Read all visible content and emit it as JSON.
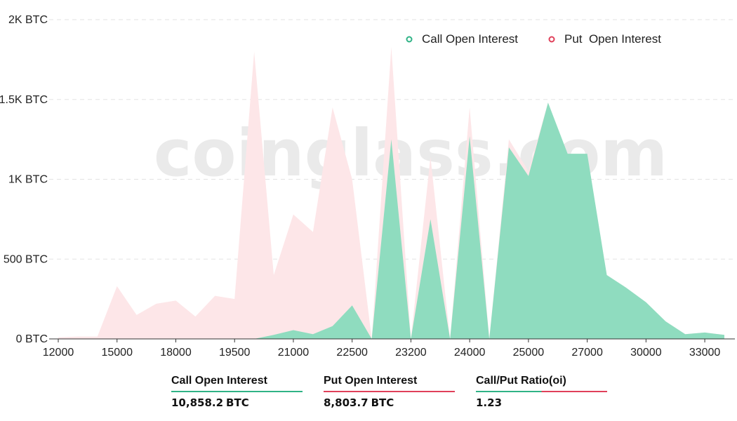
{
  "watermark": "coinglass.com",
  "colors": {
    "call": "#8fdcbf",
    "call_dot": "#2fb386",
    "put": "#fde6e8",
    "put_dot": "#e0405a",
    "grid": "#e3e3e3"
  },
  "chart_data": {
    "type": "area",
    "title": "",
    "xlabel": "",
    "ylabel": "",
    "y_unit": "BTC",
    "ylim": [
      0,
      2000
    ],
    "y_ticks": [
      {
        "value": 0,
        "label": "0 BTC"
      },
      {
        "value": 500,
        "label": "500 BTC"
      },
      {
        "value": 1000,
        "label": "1K BTC"
      },
      {
        "value": 1500,
        "label": "1.5K BTC"
      },
      {
        "value": 2000,
        "label": "2K BTC"
      }
    ],
    "x_tick_labels": [
      {
        "index": 0,
        "label": "12000"
      },
      {
        "index": 3,
        "label": "15000"
      },
      {
        "index": 6,
        "label": "18000"
      },
      {
        "index": 9,
        "label": "19500"
      },
      {
        "index": 12,
        "label": "21000"
      },
      {
        "index": 15,
        "label": "22500"
      },
      {
        "index": 18,
        "label": "23200"
      },
      {
        "index": 21,
        "label": "24000"
      },
      {
        "index": 24,
        "label": "25000"
      },
      {
        "index": 27,
        "label": "27000"
      },
      {
        "index": 30,
        "label": "30000"
      },
      {
        "index": 33,
        "label": "33000"
      }
    ],
    "grid": true,
    "legend_position": "top-right",
    "series": [
      {
        "name": "Put  Open Interest",
        "key": "put",
        "values": [
          10,
          15,
          15,
          330,
          150,
          220,
          240,
          140,
          270,
          250,
          1800,
          400,
          780,
          670,
          1450,
          1000,
          0,
          1830,
          0,
          1140,
          0,
          1450,
          0,
          1250,
          1050,
          1480,
          1150,
          1150,
          400,
          320,
          220,
          110,
          30,
          40,
          25
        ]
      },
      {
        "name": "Call Open Interest",
        "key": "call",
        "values": [
          0,
          0,
          0,
          0,
          0,
          0,
          0,
          0,
          0,
          0,
          0,
          25,
          55,
          30,
          80,
          210,
          0,
          1250,
          0,
          750,
          0,
          1270,
          0,
          1200,
          1020,
          1480,
          1160,
          1160,
          400,
          320,
          230,
          110,
          30,
          40,
          25
        ]
      }
    ]
  },
  "stats": [
    {
      "label": "Call Open Interest",
      "value": "10,858.2",
      "unit": "BTC",
      "color": "#2fb386"
    },
    {
      "label": "Put Open Interest",
      "value": "8,803.7",
      "unit": "BTC",
      "color": "#e0405a"
    },
    {
      "label": "Call/Put Ratio(oi)",
      "value": "1.23",
      "unit": "",
      "color": "mixed"
    }
  ]
}
